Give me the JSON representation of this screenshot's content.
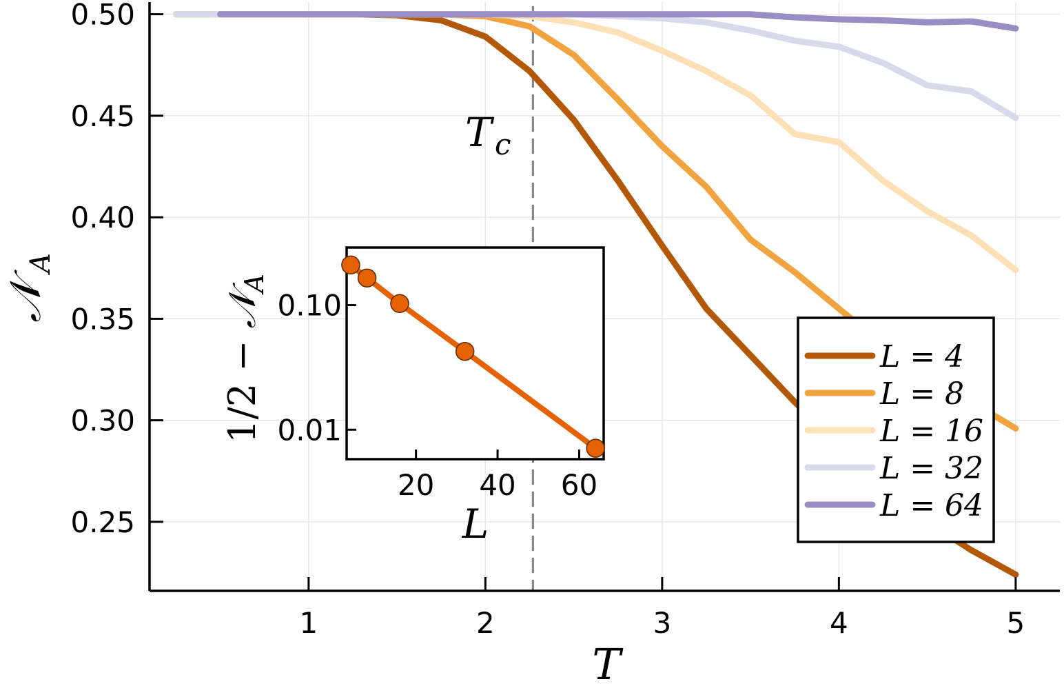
{
  "chart_data": [
    {
      "type": "line",
      "xlabel": "T",
      "ylabel": "𝒩",
      "ylabel_sub": "A",
      "xlim": [
        0.1,
        5.25
      ],
      "ylim": [
        0.216,
        0.506
      ],
      "xticks": [
        1,
        2,
        3,
        4,
        5
      ],
      "xtick_labels": [
        "1",
        "2",
        "3",
        "4",
        "5"
      ],
      "yticks": [
        0.25,
        0.3,
        0.35,
        0.4,
        0.45,
        0.5
      ],
      "ytick_labels": [
        "0.25",
        "0.30",
        "0.35",
        "0.40",
        "0.45",
        "0.50"
      ],
      "grid": true,
      "legend_position": "bottom-right",
      "annotation": {
        "text": "T",
        "sub": "c",
        "x": 2.269
      },
      "colors": [
        "#b35806",
        "#f1a340",
        "#fee0b6",
        "#d8daeb",
        "#998ec3"
      ],
      "series": [
        {
          "name": "L = 4",
          "x": [
            0.25,
            0.5,
            0.75,
            1.0,
            1.25,
            1.5,
            1.75,
            2.0,
            2.25,
            2.5,
            2.75,
            3.0,
            3.25,
            3.5,
            3.75,
            4.0,
            4.25,
            4.5,
            4.75,
            5.0
          ],
          "values": [
            0.5,
            0.5,
            0.5,
            0.5,
            0.5,
            0.4995,
            0.497,
            0.489,
            0.472,
            0.448,
            0.418,
            0.386,
            0.355,
            0.332,
            0.309,
            0.288,
            0.268,
            0.25,
            0.236,
            0.224
          ]
        },
        {
          "name": "L = 8",
          "x": [
            0.25,
            0.5,
            0.75,
            1.0,
            1.25,
            1.5,
            1.75,
            2.0,
            2.25,
            2.5,
            2.75,
            3.0,
            3.25,
            3.5,
            3.75,
            4.0,
            4.25,
            4.5,
            4.75,
            5.0
          ],
          "values": [
            0.5,
            0.5,
            0.5,
            0.5,
            0.5,
            0.5,
            0.5,
            0.499,
            0.494,
            0.48,
            0.458,
            0.435,
            0.415,
            0.389,
            0.373,
            0.355,
            0.337,
            0.323,
            0.309,
            0.296
          ]
        },
        {
          "name": "L = 16",
          "x": [
            0.25,
            0.5,
            0.75,
            1.0,
            1.25,
            1.5,
            1.75,
            2.0,
            2.25,
            2.5,
            2.75,
            3.0,
            3.25,
            3.5,
            3.75,
            4.0,
            4.25,
            4.5,
            4.75,
            5.0
          ],
          "values": [
            0.5,
            0.5,
            0.5,
            0.5,
            0.5,
            0.5,
            0.5,
            0.5,
            0.499,
            0.496,
            0.491,
            0.482,
            0.472,
            0.46,
            0.441,
            0.437,
            0.418,
            0.403,
            0.391,
            0.374
          ]
        },
        {
          "name": "L = 32",
          "x": [
            0.25,
            0.5,
            0.75,
            1.0,
            1.25,
            1.5,
            1.75,
            2.0,
            2.25,
            2.5,
            2.75,
            3.0,
            3.25,
            3.5,
            3.75,
            4.0,
            4.25,
            4.5,
            4.75,
            5.0
          ],
          "values": [
            0.5,
            0.5,
            0.5,
            0.5,
            0.5,
            0.5,
            0.5,
            0.5,
            0.5,
            0.5,
            0.499,
            0.498,
            0.496,
            0.492,
            0.487,
            0.484,
            0.476,
            0.465,
            0.462,
            0.449
          ]
        },
        {
          "name": "L = 64",
          "x": [
            0.5,
            0.75,
            1.0,
            1.25,
            1.5,
            1.75,
            2.0,
            2.25,
            2.5,
            2.75,
            3.0,
            3.25,
            3.5,
            3.75,
            4.0,
            4.25,
            4.5,
            4.75,
            5.0
          ],
          "values": [
            0.5,
            0.5,
            0.5,
            0.5,
            0.5,
            0.5,
            0.5,
            0.5,
            0.5,
            0.5,
            0.5,
            0.5,
            0.5,
            0.4985,
            0.4975,
            0.497,
            0.496,
            0.4965,
            0.493
          ]
        }
      ]
    },
    {
      "type": "line",
      "inset": true,
      "xlabel": "L",
      "ylabel_prefix": "1/2 − ",
      "ylabel_main": "𝒩",
      "ylabel_sub": "A",
      "xlim": [
        3,
        66
      ],
      "ylog": true,
      "ylim": [
        0.0058,
        0.29
      ],
      "xticks": [
        20,
        40,
        60
      ],
      "xtick_labels": [
        "20",
        "40",
        "60"
      ],
      "yticks": [
        0.01,
        0.1
      ],
      "ytick_labels": [
        "0.01",
        "0.10"
      ],
      "color": "#e66101",
      "series": [
        {
          "x": [
            4,
            8,
            16,
            32,
            64
          ],
          "values": [
            0.21,
            0.165,
            0.103,
            0.0425,
            0.0071
          ]
        }
      ]
    }
  ]
}
